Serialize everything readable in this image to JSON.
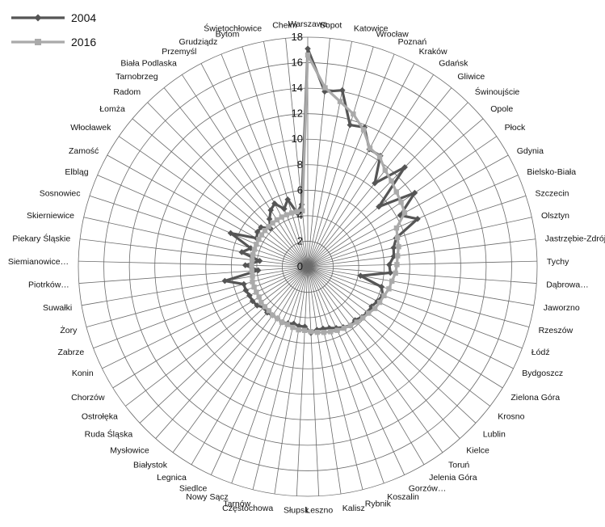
{
  "chart_data": {
    "type": "radar",
    "title": "",
    "rmin": 0,
    "rmax": 18,
    "tick_step": 2,
    "grid": true,
    "legend_position": "top-left",
    "categories": [
      "Warszawa",
      "Sopot",
      "Katowice",
      "Wrocław",
      "Poznań",
      "Kraków",
      "Gdańsk",
      "Gliwice",
      "Świnoujście",
      "Opole",
      "Płock",
      "Gdynia",
      "Bielsko-Biała",
      "Szczecin",
      "Olsztyn",
      "Jastrzębie-Zdrój",
      "Tychy",
      "Dąbrowa…",
      "Jaworzno",
      "Rzeszów",
      "Łódź",
      "Bydgoszcz",
      "Zielona Góra",
      "Krosno",
      "Lublin",
      "Kielce",
      "Toruń",
      "Jelenia Góra",
      "Gorzów…",
      "Koszalin",
      "Rybnik",
      "Kalisz",
      "Leszno",
      "Słupsk",
      "Częstochowa",
      "Tarnów",
      "Nowy Sącz",
      "Siedlce",
      "Legnica",
      "Białystok",
      "Mysłowice",
      "Ruda Śląska",
      "Ostrołęka",
      "Chorzów",
      "Konin",
      "Zabrze",
      "Żory",
      "Suwałki",
      "Piotrków…",
      "Siemianowice…",
      "Piekary Śląskie",
      "Skierniewice",
      "Sosnowiec",
      "Elbląg",
      "Zamość",
      "Włocławek",
      "Łomża",
      "Radom",
      "Tarnobrzeg",
      "Biała Podlaska",
      "Przemyśl",
      "Grudziądz",
      "Bytom",
      "Świętochłowice",
      "Chełm"
    ],
    "series": [
      {
        "name": "2004",
        "color": "#555555",
        "marker": "diamond",
        "values": [
          17.1,
          13.8,
          14.1,
          11.6,
          11.8,
          10.4,
          10.4,
          8.4,
          10.9,
          7.3,
          10.2,
          8.3,
          9.4,
          7.3,
          6.9,
          6.8,
          6.4,
          6.5,
          4.2,
          6.0,
          6.3,
          6.1,
          5.9,
          5.9,
          5.8,
          5.6,
          5.7,
          5.5,
          5.3,
          5.1,
          5.0,
          5.0,
          5.2,
          4.7,
          4.7,
          4.6,
          4.7,
          4.8,
          4.7,
          4.7,
          4.8,
          4.7,
          5.0,
          5.1,
          5.1,
          5.2,
          5.2,
          6.6,
          3.9,
          4.9,
          3.8,
          5.3,
          4.7,
          6.6,
          4.6,
          4.8,
          4.8,
          4.2,
          4.8,
          5.3,
          5.6,
          4.9,
          5.5,
          4.3,
          4.9
        ]
      },
      {
        "name": "2016",
        "color": "#aaaaaa",
        "marker": "square",
        "values": [
          16.6,
          14.1,
          13.2,
          12.5,
          11.6,
          10.5,
          10.3,
          9.7,
          9.4,
          9.1,
          8.9,
          8.7,
          7.6,
          7.4,
          7.3,
          7.1,
          7.0,
          6.9,
          6.7,
          6.6,
          6.4,
          6.3,
          6.2,
          6.0,
          5.9,
          5.8,
          5.7,
          5.6,
          5.5,
          5.4,
          5.3,
          5.2,
          5.1,
          5.0,
          5.0,
          4.9,
          4.8,
          4.8,
          4.7,
          4.7,
          4.6,
          4.6,
          4.6,
          4.5,
          4.5,
          4.5,
          4.5,
          4.4,
          4.4,
          4.4,
          4.4,
          4.4,
          4.4,
          4.4,
          4.4,
          4.4,
          4.4,
          4.4,
          4.4,
          4.4,
          4.4,
          4.4,
          4.4,
          4.4,
          4.4
        ]
      }
    ]
  }
}
